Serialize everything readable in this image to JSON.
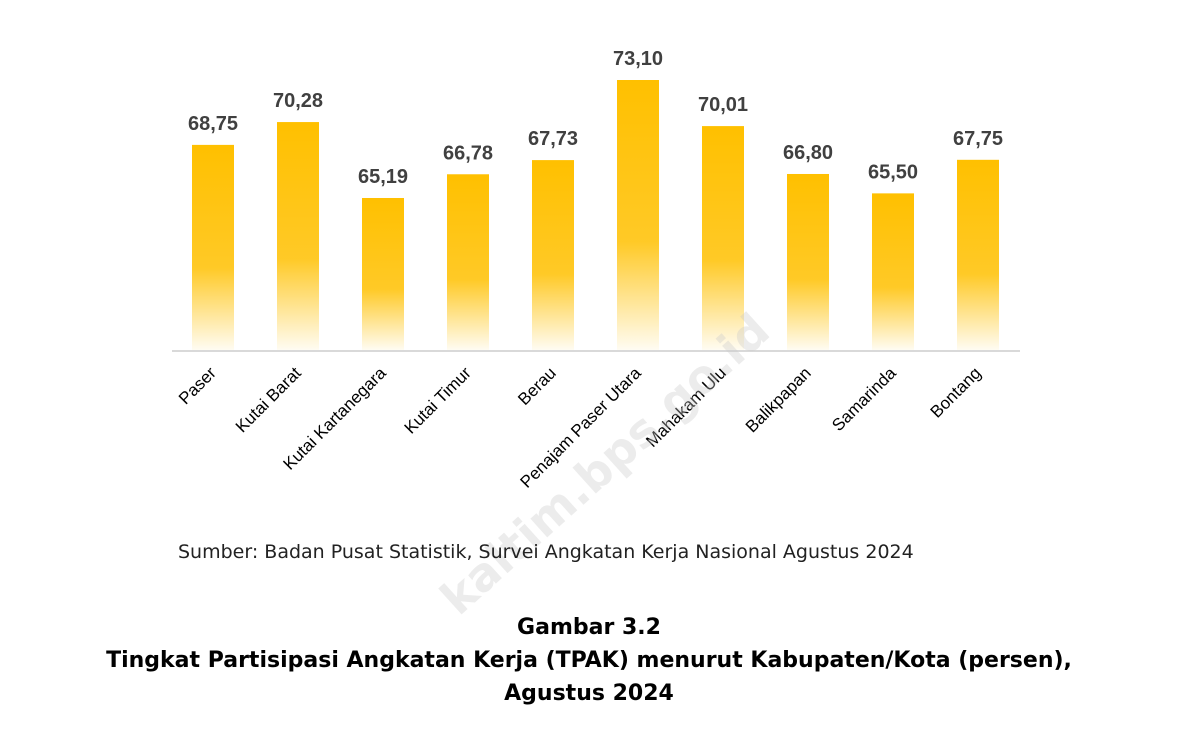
{
  "source_note": "Sumber: Badan Pusat Statistik, Survei Angkatan Kerja Nasional Agustus 2024",
  "watermark_text": "kaltim.bps.go.id",
  "figure": {
    "number": "Gambar 3.2",
    "title_line1": "Tingkat Partisipasi Angkatan Kerja (TPAK) menurut Kabupaten/Kota (persen),",
    "title_line2": "Agustus 2024"
  },
  "chart_data": {
    "type": "bar",
    "categories": [
      "Paser",
      "Kutai Barat",
      "Kutai Kartanegara",
      "Kutai Timur",
      "Berau",
      "Penajam Paser Utara",
      "Mahakam Ulu",
      "Balikpapan",
      "Samarinda",
      "Bontang"
    ],
    "values": [
      68.75,
      70.28,
      65.19,
      66.78,
      67.73,
      73.1,
      70.01,
      66.8,
      65.5,
      67.75
    ],
    "value_labels": [
      "68,75",
      "70,28",
      "65,19",
      "66,78",
      "67,73",
      "73,10",
      "70,01",
      "66,80",
      "65,50",
      "67,75"
    ],
    "ylim": [
      55,
      75
    ],
    "grid": false,
    "legend": "none",
    "bar_color": "#FFC000"
  }
}
